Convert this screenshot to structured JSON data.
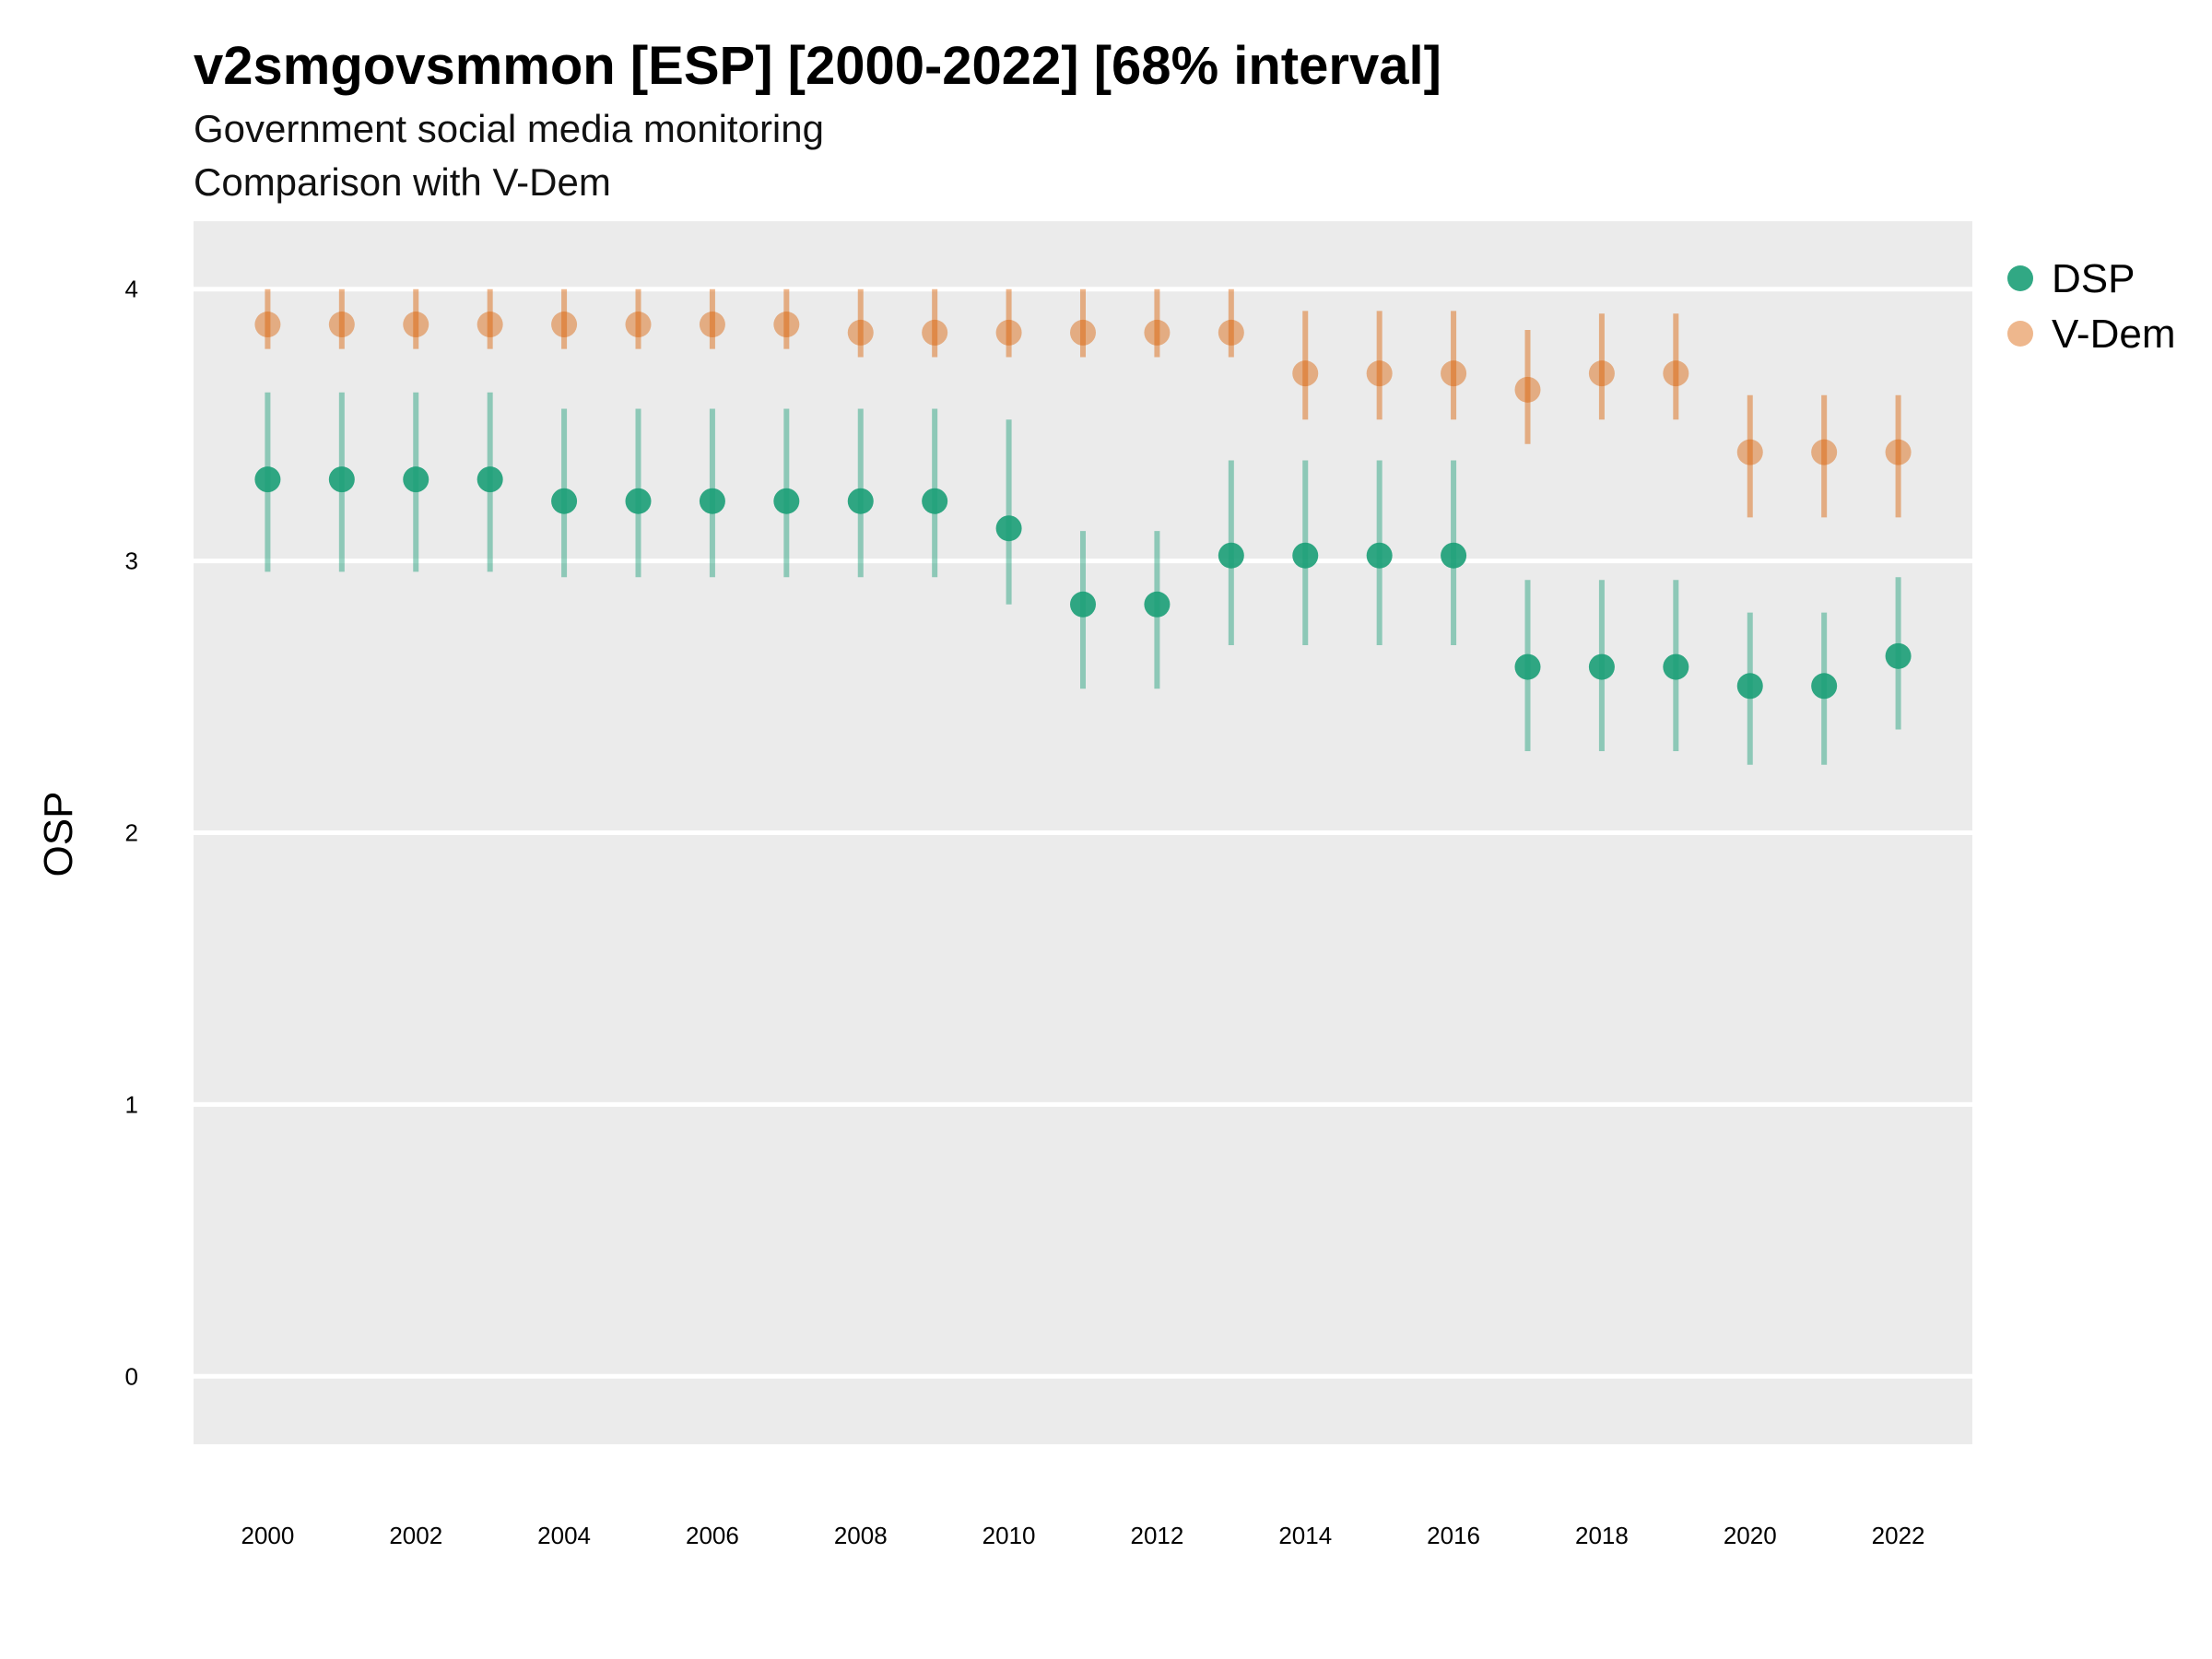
{
  "chart_data": {
    "type": "scatter",
    "title": "v2smgovsmmon [ESP] [2000-2022] [68% interval]",
    "subtitle": "Government social media monitoring",
    "subtitle2": "Comparison with V-Dem",
    "xlabel": "",
    "ylabel": "OSP",
    "xlim": [
      1999,
      2023
    ],
    "ylim": [
      -0.25,
      4.25
    ],
    "yticks": [
      0,
      1,
      2,
      3,
      4
    ],
    "xticks": [
      2000,
      2002,
      2004,
      2006,
      2008,
      2010,
      2012,
      2014,
      2016,
      2018,
      2020,
      2022
    ],
    "grid": true,
    "legend_position": "right",
    "series": [
      {
        "name": "DSP",
        "color": "#1b9e77",
        "points": [
          {
            "x": 2000,
            "y": 3.3,
            "lo": 2.96,
            "hi": 3.62
          },
          {
            "x": 2001,
            "y": 3.3,
            "lo": 2.96,
            "hi": 3.62
          },
          {
            "x": 2002,
            "y": 3.3,
            "lo": 2.96,
            "hi": 3.62
          },
          {
            "x": 2003,
            "y": 3.3,
            "lo": 2.96,
            "hi": 3.62
          },
          {
            "x": 2004,
            "y": 3.22,
            "lo": 2.94,
            "hi": 3.56
          },
          {
            "x": 2005,
            "y": 3.22,
            "lo": 2.94,
            "hi": 3.56
          },
          {
            "x": 2006,
            "y": 3.22,
            "lo": 2.94,
            "hi": 3.56
          },
          {
            "x": 2007,
            "y": 3.22,
            "lo": 2.94,
            "hi": 3.56
          },
          {
            "x": 2008,
            "y": 3.22,
            "lo": 2.94,
            "hi": 3.56
          },
          {
            "x": 2009,
            "y": 3.22,
            "lo": 2.94,
            "hi": 3.56
          },
          {
            "x": 2010,
            "y": 3.12,
            "lo": 2.84,
            "hi": 3.52
          },
          {
            "x": 2011,
            "y": 2.84,
            "lo": 2.53,
            "hi": 3.11
          },
          {
            "x": 2012,
            "y": 2.84,
            "lo": 2.53,
            "hi": 3.11
          },
          {
            "x": 2013,
            "y": 3.02,
            "lo": 2.69,
            "hi": 3.37
          },
          {
            "x": 2014,
            "y": 3.02,
            "lo": 2.69,
            "hi": 3.37
          },
          {
            "x": 2015,
            "y": 3.02,
            "lo": 2.69,
            "hi": 3.37
          },
          {
            "x": 2016,
            "y": 3.02,
            "lo": 2.69,
            "hi": 3.37
          },
          {
            "x": 2017,
            "y": 2.61,
            "lo": 2.3,
            "hi": 2.93
          },
          {
            "x": 2018,
            "y": 2.61,
            "lo": 2.3,
            "hi": 2.93
          },
          {
            "x": 2019,
            "y": 2.61,
            "lo": 2.3,
            "hi": 2.93
          },
          {
            "x": 2020,
            "y": 2.54,
            "lo": 2.25,
            "hi": 2.81
          },
          {
            "x": 2021,
            "y": 2.54,
            "lo": 2.25,
            "hi": 2.81
          },
          {
            "x": 2022,
            "y": 2.65,
            "lo": 2.38,
            "hi": 2.94
          }
        ]
      },
      {
        "name": "V-Dem",
        "color": "#d95f02",
        "points": [
          {
            "x": 2000,
            "y": 3.87,
            "lo": 3.78,
            "hi": 4.0
          },
          {
            "x": 2001,
            "y": 3.87,
            "lo": 3.78,
            "hi": 4.0
          },
          {
            "x": 2002,
            "y": 3.87,
            "lo": 3.78,
            "hi": 4.0
          },
          {
            "x": 2003,
            "y": 3.87,
            "lo": 3.78,
            "hi": 4.0
          },
          {
            "x": 2004,
            "y": 3.87,
            "lo": 3.78,
            "hi": 4.0
          },
          {
            "x": 2005,
            "y": 3.87,
            "lo": 3.78,
            "hi": 4.0
          },
          {
            "x": 2006,
            "y": 3.87,
            "lo": 3.78,
            "hi": 4.0
          },
          {
            "x": 2007,
            "y": 3.87,
            "lo": 3.78,
            "hi": 4.0
          },
          {
            "x": 2008,
            "y": 3.84,
            "lo": 3.75,
            "hi": 4.0
          },
          {
            "x": 2009,
            "y": 3.84,
            "lo": 3.75,
            "hi": 4.0
          },
          {
            "x": 2010,
            "y": 3.84,
            "lo": 3.75,
            "hi": 4.0
          },
          {
            "x": 2011,
            "y": 3.84,
            "lo": 3.75,
            "hi": 4.0
          },
          {
            "x": 2012,
            "y": 3.84,
            "lo": 3.75,
            "hi": 4.0
          },
          {
            "x": 2013,
            "y": 3.84,
            "lo": 3.75,
            "hi": 4.0
          },
          {
            "x": 2014,
            "y": 3.69,
            "lo": 3.52,
            "hi": 3.92
          },
          {
            "x": 2015,
            "y": 3.69,
            "lo": 3.52,
            "hi": 3.92
          },
          {
            "x": 2016,
            "y": 3.69,
            "lo": 3.52,
            "hi": 3.92
          },
          {
            "x": 2017,
            "y": 3.63,
            "lo": 3.43,
            "hi": 3.85
          },
          {
            "x": 2018,
            "y": 3.69,
            "lo": 3.52,
            "hi": 3.91
          },
          {
            "x": 2019,
            "y": 3.69,
            "lo": 3.52,
            "hi": 3.91
          },
          {
            "x": 2020,
            "y": 3.4,
            "lo": 3.16,
            "hi": 3.61
          },
          {
            "x": 2021,
            "y": 3.4,
            "lo": 3.16,
            "hi": 3.61
          },
          {
            "x": 2022,
            "y": 3.4,
            "lo": 3.16,
            "hi": 3.61
          }
        ]
      }
    ]
  }
}
